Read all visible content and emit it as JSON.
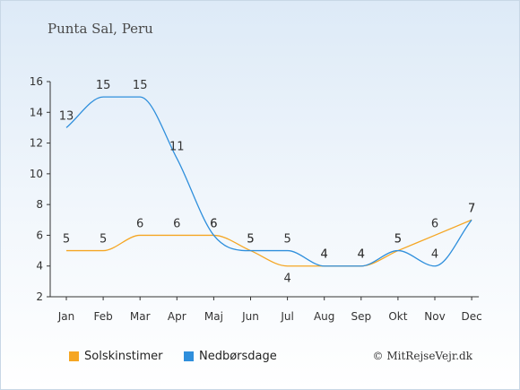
{
  "location": "Punta Sal, Peru",
  "copyright": "© MitRejseVejr.dk",
  "chart_data": {
    "type": "line",
    "categories": [
      "Jan",
      "Feb",
      "Mar",
      "Apr",
      "Maj",
      "Jun",
      "Jul",
      "Aug",
      "Sep",
      "Okt",
      "Nov",
      "Dec"
    ],
    "ylim": [
      2,
      16
    ],
    "yticks": [
      2,
      4,
      6,
      8,
      10,
      12,
      14,
      16
    ],
    "series": [
      {
        "name": "Solskinstimer",
        "color": "#f5a623",
        "values": [
          5,
          5,
          6,
          6,
          6,
          5,
          4,
          4,
          4,
          5,
          6,
          7
        ]
      },
      {
        "name": "Nedbørsdage",
        "color": "#2f8fdc",
        "values": [
          13,
          15,
          15,
          11,
          6,
          5,
          5,
          4,
          4,
          5,
          4,
          7
        ]
      }
    ]
  }
}
